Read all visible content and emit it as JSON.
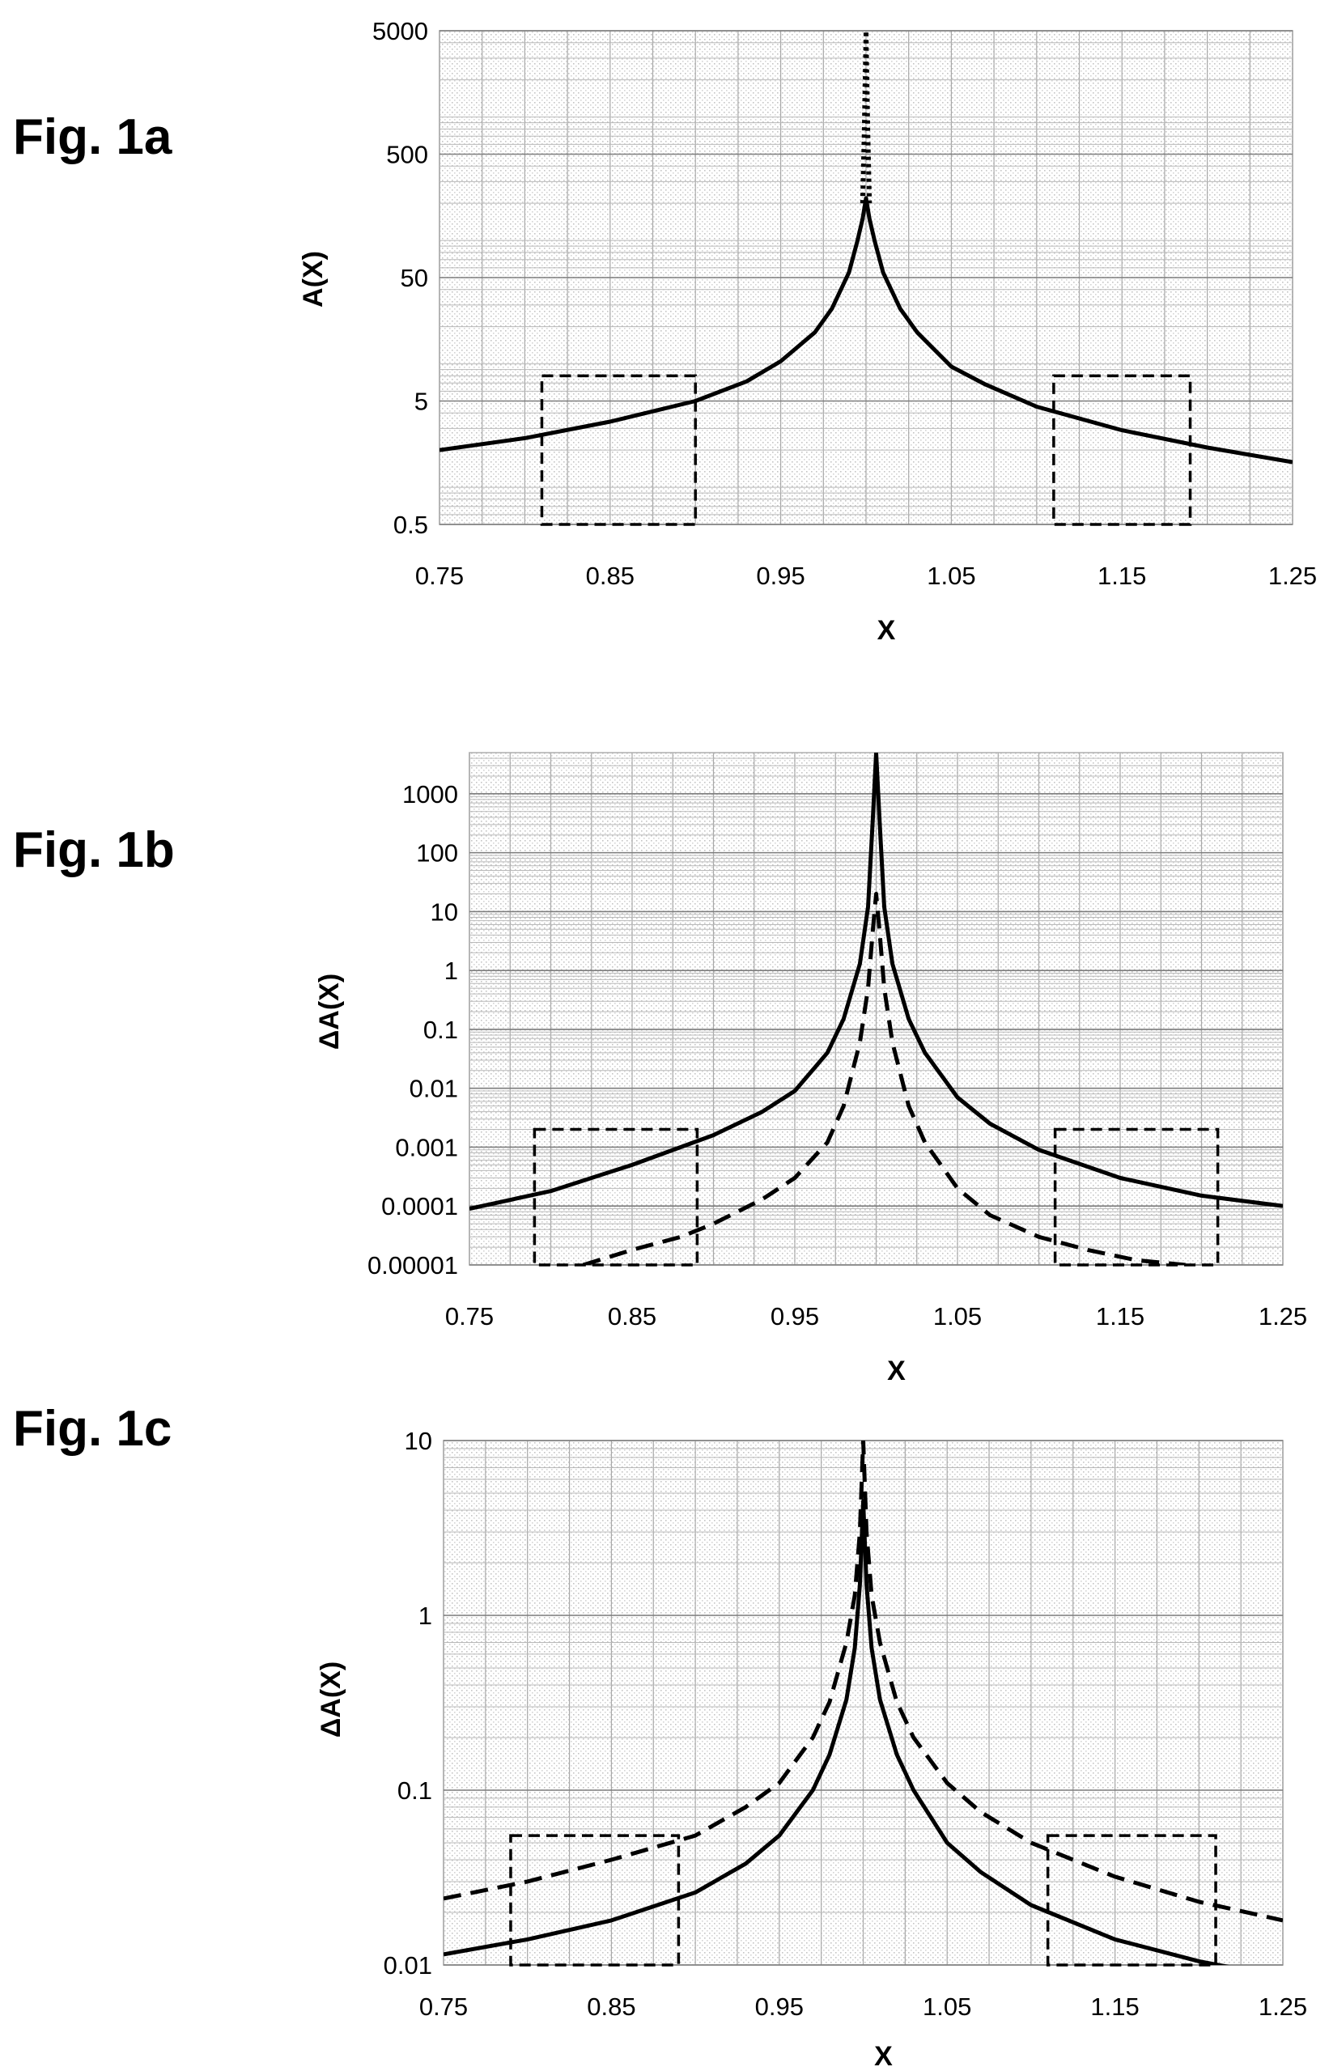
{
  "figures": [
    {
      "label": "Fig. 1a"
    },
    {
      "label": "Fig. 1b"
    },
    {
      "label": "Fig. 1c"
    }
  ],
  "chart_data": [
    {
      "type": "line",
      "panel": "Fig. 1a",
      "xlabel": "X",
      "ylabel": "A(X)",
      "xlim": [
        0.75,
        1.25
      ],
      "ylim": [
        0.5,
        5000
      ],
      "yscale": "log",
      "grid": true,
      "xticks": [
        "0.75",
        "0.85",
        "0.95",
        "1.05",
        "1.15",
        "1.25"
      ],
      "yticks": [
        {
          "label": "0.5",
          "value": 0.5
        },
        {
          "label": "5",
          "value": 5
        },
        {
          "label": "50",
          "value": 50
        },
        {
          "label": "500",
          "value": 500
        },
        {
          "label": "5000",
          "value": 5000
        }
      ],
      "series": [
        {
          "style": "solid",
          "x": [
            0.75,
            0.8,
            0.85,
            0.9,
            0.93,
            0.95,
            0.97,
            0.98,
            0.99,
            0.995,
            0.998,
            1.0,
            1.002,
            1.005,
            1.01,
            1.02,
            1.03,
            1.05,
            1.07,
            1.1,
            1.15,
            1.2,
            1.25
          ],
          "y": [
            2.0,
            2.5,
            3.4,
            5.0,
            7.2,
            10.5,
            18,
            28,
            55,
            100,
            150,
            220,
            150,
            100,
            55,
            28,
            18,
            9.5,
            6.8,
            4.5,
            2.9,
            2.1,
            1.6
          ]
        },
        {
          "style": "dotted",
          "x": [
            0.998,
            0.999,
            1.0,
            1.001,
            1.002
          ],
          "y": [
            200,
            800,
            5000,
            800,
            200
          ]
        }
      ],
      "highlight_boxes": [
        {
          "x": [
            0.81,
            0.9
          ],
          "y": [
            0.5,
            8
          ]
        },
        {
          "x": [
            1.11,
            1.19
          ],
          "y": [
            0.5,
            8
          ]
        }
      ]
    },
    {
      "type": "line",
      "panel": "Fig. 1b",
      "xlabel": "X",
      "ylabel": "ΔA(X)",
      "xlim": [
        0.75,
        1.25
      ],
      "ylim": [
        1e-05,
        5000
      ],
      "yscale": "log",
      "grid": true,
      "xticks": [
        "0.75",
        "0.85",
        "0.95",
        "1.05",
        "1.15",
        "1.25"
      ],
      "yticks": [
        {
          "label": "0.00001",
          "value": 1e-05
        },
        {
          "label": "0.0001",
          "value": 0.0001
        },
        {
          "label": "0.001",
          "value": 0.001
        },
        {
          "label": "0.01",
          "value": 0.01
        },
        {
          "label": "0.1",
          "value": 0.1
        },
        {
          "label": "1",
          "value": 1
        },
        {
          "label": "10",
          "value": 10
        },
        {
          "label": "100",
          "value": 100
        },
        {
          "label": "1000",
          "value": 1000
        }
      ],
      "series": [
        {
          "style": "solid",
          "x": [
            0.75,
            0.8,
            0.85,
            0.9,
            0.93,
            0.95,
            0.97,
            0.98,
            0.99,
            0.995,
            0.998,
            1.0,
            1.002,
            1.005,
            1.01,
            1.02,
            1.03,
            1.05,
            1.07,
            1.1,
            1.15,
            1.2,
            1.25
          ],
          "y": [
            9e-05,
            0.00018,
            0.0005,
            0.0016,
            0.004,
            0.009,
            0.04,
            0.15,
            1.3,
            12,
            400,
            5000,
            400,
            12,
            1.3,
            0.15,
            0.04,
            0.007,
            0.0025,
            0.0009,
            0.0003,
            0.00015,
            0.0001
          ]
        },
        {
          "style": "dashed",
          "x": [
            0.82,
            0.85,
            0.88,
            0.9,
            0.93,
            0.95,
            0.97,
            0.98,
            0.99,
            0.995,
            0.998,
            1.0,
            1.002,
            1.005,
            1.01,
            1.02,
            1.03,
            1.05,
            1.07,
            1.1,
            1.13,
            1.16,
            1.19
          ],
          "y": [
            1e-05,
            1.8e-05,
            3e-05,
            5e-05,
            0.00013,
            0.0003,
            0.0012,
            0.005,
            0.06,
            0.5,
            5,
            20,
            5,
            0.5,
            0.06,
            0.005,
            0.0012,
            0.0002,
            7e-05,
            3e-05,
            1.8e-05,
            1.2e-05,
            1e-05
          ]
        }
      ],
      "highlight_boxes": [
        {
          "x": [
            0.79,
            0.89
          ],
          "y": [
            1e-05,
            0.002
          ]
        },
        {
          "x": [
            1.11,
            1.21
          ],
          "y": [
            1e-05,
            0.002
          ]
        }
      ]
    },
    {
      "type": "line",
      "panel": "Fig. 1c",
      "xlabel": "X",
      "ylabel": "ΔA(X)",
      "xlim": [
        0.75,
        1.25
      ],
      "ylim": [
        0.01,
        10
      ],
      "yscale": "log",
      "grid": true,
      "xticks": [
        "0.75",
        "0.85",
        "0.95",
        "1.05",
        "1.15",
        "1.25"
      ],
      "yticks": [
        {
          "label": "0.01",
          "value": 0.01
        },
        {
          "label": "0.1",
          "value": 0.1
        },
        {
          "label": "1",
          "value": 1
        },
        {
          "label": "10",
          "value": 10
        }
      ],
      "series": [
        {
          "style": "solid",
          "x": [
            0.75,
            0.8,
            0.85,
            0.9,
            0.93,
            0.95,
            0.97,
            0.98,
            0.99,
            0.995,
            0.998,
            1.0,
            1.002,
            1.005,
            1.01,
            1.02,
            1.03,
            1.05,
            1.07,
            1.1,
            1.15,
            1.2,
            1.25
          ],
          "y": [
            0.0115,
            0.014,
            0.018,
            0.026,
            0.038,
            0.055,
            0.1,
            0.16,
            0.33,
            0.65,
            1.5,
            4.5,
            1.5,
            0.65,
            0.33,
            0.16,
            0.1,
            0.05,
            0.034,
            0.022,
            0.014,
            0.0105,
            0.0085
          ]
        },
        {
          "style": "dashed",
          "x": [
            0.75,
            0.8,
            0.85,
            0.9,
            0.93,
            0.95,
            0.97,
            0.98,
            0.99,
            0.995,
            0.998,
            1.0,
            1.002,
            1.005,
            1.01,
            1.02,
            1.03,
            1.05,
            1.07,
            1.1,
            1.15,
            1.2,
            1.25
          ],
          "y": [
            0.024,
            0.03,
            0.04,
            0.055,
            0.08,
            0.11,
            0.2,
            0.32,
            0.7,
            1.3,
            3,
            10,
            3,
            1.3,
            0.7,
            0.32,
            0.2,
            0.11,
            0.075,
            0.05,
            0.032,
            0.023,
            0.018
          ]
        }
      ],
      "highlight_boxes": [
        {
          "x": [
            0.79,
            0.89
          ],
          "y": [
            0.01,
            0.055
          ]
        },
        {
          "x": [
            1.11,
            1.21
          ],
          "y": [
            0.01,
            0.055
          ]
        }
      ]
    }
  ]
}
